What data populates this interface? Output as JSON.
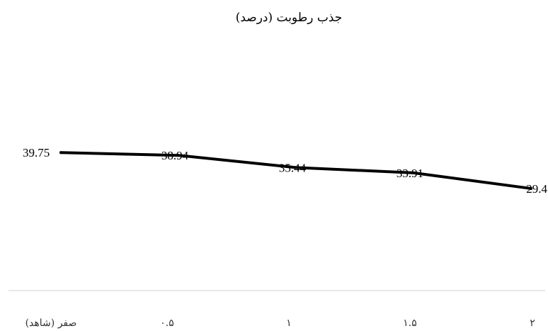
{
  "chart_data": {
    "type": "line",
    "title": "جذب رطوبت (درصد)",
    "categories": [
      "صفر (شاهد)",
      "۰.۵",
      "۱",
      "۱.۵",
      "۲"
    ],
    "series": [
      {
        "values": [
          39.75,
          38.94,
          35.44,
          33.91,
          29.4
        ],
        "color": "#000000"
      }
    ],
    "value_labels": [
      "39.75",
      "38.94",
      "35.44",
      "33.91",
      "29.4"
    ],
    "ylim": [
      0,
      80
    ],
    "xlabel": "",
    "ylabel": "",
    "grid": false,
    "legend": false,
    "category_order": "right-to-left"
  }
}
